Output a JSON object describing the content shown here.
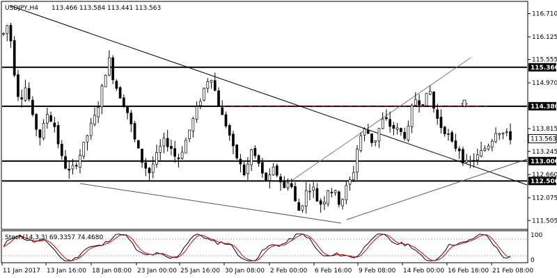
{
  "chart_data": [
    {
      "type": "candlestick",
      "title": "USDJPY,H4",
      "ohlc_header": [
        "113.466",
        "113.584",
        "113.441",
        "113.563"
      ],
      "ylim": [
        111.3,
        117.0
      ],
      "y_ticks": [
        "116.710",
        "116.125",
        "115.555",
        "114.970",
        "114.380",
        "113.815",
        "113.245",
        "112.660",
        "112.075",
        "111.505"
      ],
      "x_ticks": [
        "11 Jan 2017",
        "13 Jan 16:00",
        "18 Jan 08:00",
        "23 Jan 00:00",
        "25 Jan 16:00",
        "30 Jan 08:00",
        "2 Feb 00:00",
        "6 Feb 16:00",
        "9 Feb 08:00",
        "14 Feb 00:00",
        "16 Feb 16:00",
        "21 Feb 08:00"
      ],
      "levels": [
        {
          "label": "115.360",
          "value": 115.36,
          "style": "solid"
        },
        {
          "label": "114.380",
          "value": 114.38,
          "style": "solid"
        },
        {
          "label": "113.000",
          "value": 113.0,
          "style": "solid"
        },
        {
          "label": "112.500",
          "value": 112.5,
          "style": "solid"
        }
      ],
      "resistance_dashdot": {
        "value": 114.38,
        "color": "#cc0000"
      },
      "current_price": {
        "label": "113.563",
        "value": 113.563
      },
      "arrow_marker": {
        "icon": "down-arrow-icon",
        "value": 114.55
      }
    },
    {
      "type": "line",
      "title": "Stoch(14,3,3) 69.3357 74.4680",
      "ylim": [
        0,
        100
      ],
      "y_ticks": [
        "100",
        "0"
      ],
      "series": [
        {
          "color": "#000000"
        },
        {
          "color": "#cc0000"
        }
      ]
    }
  ]
}
